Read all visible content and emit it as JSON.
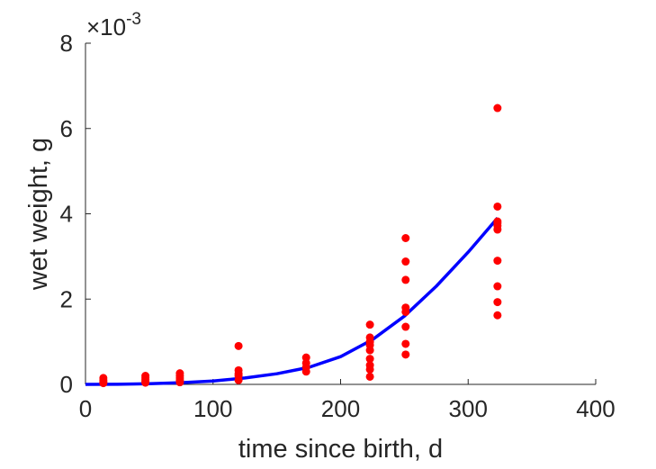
{
  "chart_data": {
    "type": "scatter",
    "xlabel": "time since birth, d",
    "ylabel": "wet weight, g",
    "xlim": [
      0,
      400
    ],
    "ylim": [
      0,
      0.008
    ],
    "xticks": [
      "0",
      "100",
      "200",
      "300",
      "400"
    ],
    "yticks": [
      "0",
      "2",
      "4",
      "6",
      "8"
    ],
    "y_multiplier_label": "×10",
    "y_multiplier_exponent": "-3",
    "grid": false,
    "series": [
      {
        "kind": "points",
        "color": "#ff0000",
        "points": [
          [
            14,
            3e-05
          ],
          [
            14,
            6e-05
          ],
          [
            14,
            0.0001
          ],
          [
            14,
            0.00015
          ],
          [
            47,
            4e-05
          ],
          [
            47,
            8e-05
          ],
          [
            47,
            0.00012
          ],
          [
            47,
            0.00016
          ],
          [
            47,
            0.0002
          ],
          [
            74,
            5e-05
          ],
          [
            74,
            0.0001
          ],
          [
            74,
            0.00015
          ],
          [
            74,
            0.0002
          ],
          [
            74,
            0.00026
          ],
          [
            120,
            0.0001
          ],
          [
            120,
            0.0002
          ],
          [
            120,
            0.00025
          ],
          [
            120,
            0.00033
          ],
          [
            120,
            0.0009
          ],
          [
            173,
            0.0003
          ],
          [
            173,
            0.0004
          ],
          [
            173,
            0.0005
          ],
          [
            173,
            0.00063
          ],
          [
            223,
            0.00018
          ],
          [
            223,
            0.00035
          ],
          [
            223,
            0.00045
          ],
          [
            223,
            0.0006
          ],
          [
            223,
            0.0008
          ],
          [
            223,
            0.00092
          ],
          [
            223,
            0.001
          ],
          [
            223,
            0.0011
          ],
          [
            223,
            0.0014
          ],
          [
            251,
            0.0007
          ],
          [
            251,
            0.00095
          ],
          [
            251,
            0.00135
          ],
          [
            251,
            0.0017
          ],
          [
            251,
            0.0018
          ],
          [
            251,
            0.00245
          ],
          [
            251,
            0.00288
          ],
          [
            251,
            0.00343
          ],
          [
            323,
            0.00162
          ],
          [
            323,
            0.00193
          ],
          [
            323,
            0.0023
          ],
          [
            323,
            0.0029
          ],
          [
            323,
            0.00363
          ],
          [
            323,
            0.00372
          ],
          [
            323,
            0.00378
          ],
          [
            323,
            0.00382
          ],
          [
            323,
            0.00417
          ],
          [
            323,
            0.00648
          ]
        ]
      },
      {
        "kind": "curve",
        "color": "#0000ff",
        "x": [
          0,
          25,
          50,
          75,
          100,
          125,
          150,
          175,
          200,
          225,
          250,
          275,
          300,
          323
        ],
        "y": [
          0.0,
          3e-06,
          1.5e-05,
          4e-05,
          8e-05,
          0.00015,
          0.00025,
          0.0004,
          0.00065,
          0.00105,
          0.0016,
          0.0023,
          0.0031,
          0.0039
        ]
      }
    ]
  }
}
